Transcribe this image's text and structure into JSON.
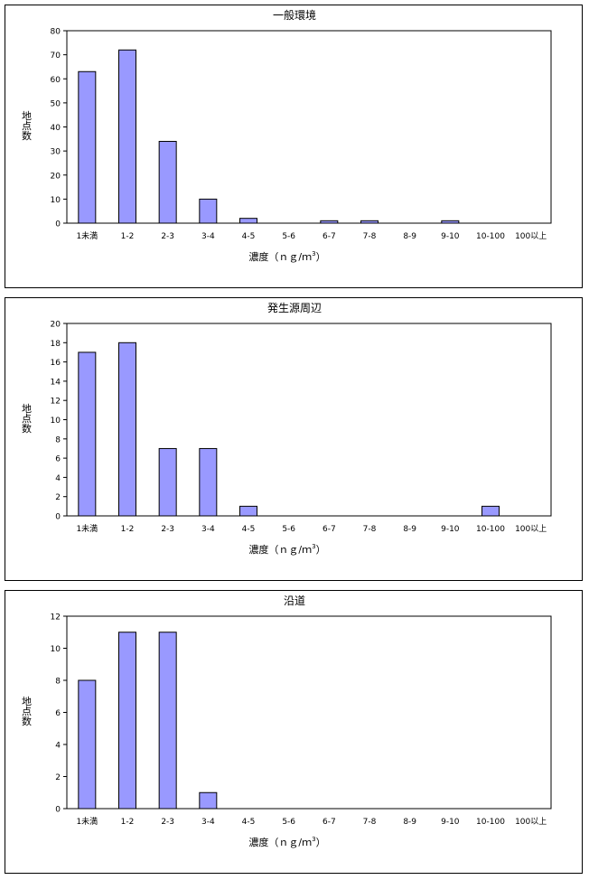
{
  "chart_data": [
    {
      "type": "bar",
      "title": "一般環境",
      "xlabel_main": "濃度（ｎｇ/ｍ",
      "xlabel_sup": "3",
      "xlabel_end": "）",
      "ylabel": "地点数",
      "categories": [
        "1未満",
        "1-2",
        "2-3",
        "3-4",
        "4-5",
        "5-6",
        "6-7",
        "7-8",
        "8-9",
        "9-10",
        "10-100",
        "100以上"
      ],
      "values": [
        63,
        72,
        34,
        10,
        2,
        0,
        1,
        1,
        0,
        1,
        0,
        0
      ],
      "ylim": [
        0,
        80
      ],
      "yticks": [
        0,
        10,
        20,
        30,
        40,
        50,
        60,
        70,
        80
      ],
      "bar_color": "#9999ff",
      "grid": false,
      "legend": "none"
    },
    {
      "type": "bar",
      "title": "発生源周辺",
      "xlabel_main": "濃度（ｎｇ/ｍ",
      "xlabel_sup": "3",
      "xlabel_end": "）",
      "ylabel": "地点数",
      "categories": [
        "1未満",
        "1-2",
        "2-3",
        "3-4",
        "4-5",
        "5-6",
        "6-7",
        "7-8",
        "8-9",
        "9-10",
        "10-100",
        "100以上"
      ],
      "values": [
        17,
        18,
        7,
        7,
        1,
        0,
        0,
        0,
        0,
        0,
        1,
        0
      ],
      "ylim": [
        0,
        20
      ],
      "yticks": [
        0,
        2,
        4,
        6,
        8,
        10,
        12,
        14,
        16,
        18,
        20
      ],
      "bar_color": "#9999ff",
      "grid": false,
      "legend": "none"
    },
    {
      "type": "bar",
      "title": "沿道",
      "xlabel_main": "濃度（ｎｇ/ｍ",
      "xlabel_sup": "3",
      "xlabel_end": "）",
      "ylabel": "地点数",
      "categories": [
        "1未満",
        "1-2",
        "2-3",
        "3-4",
        "4-5",
        "5-6",
        "6-7",
        "7-8",
        "8-9",
        "9-10",
        "10-100",
        "100以上"
      ],
      "values": [
        8,
        11,
        11,
        1,
        0,
        0,
        0,
        0,
        0,
        0,
        0,
        0
      ],
      "ylim": [
        0,
        12
      ],
      "yticks": [
        0,
        2,
        4,
        6,
        8,
        10,
        12
      ],
      "bar_color": "#9999ff",
      "grid": false,
      "legend": "none"
    }
  ]
}
